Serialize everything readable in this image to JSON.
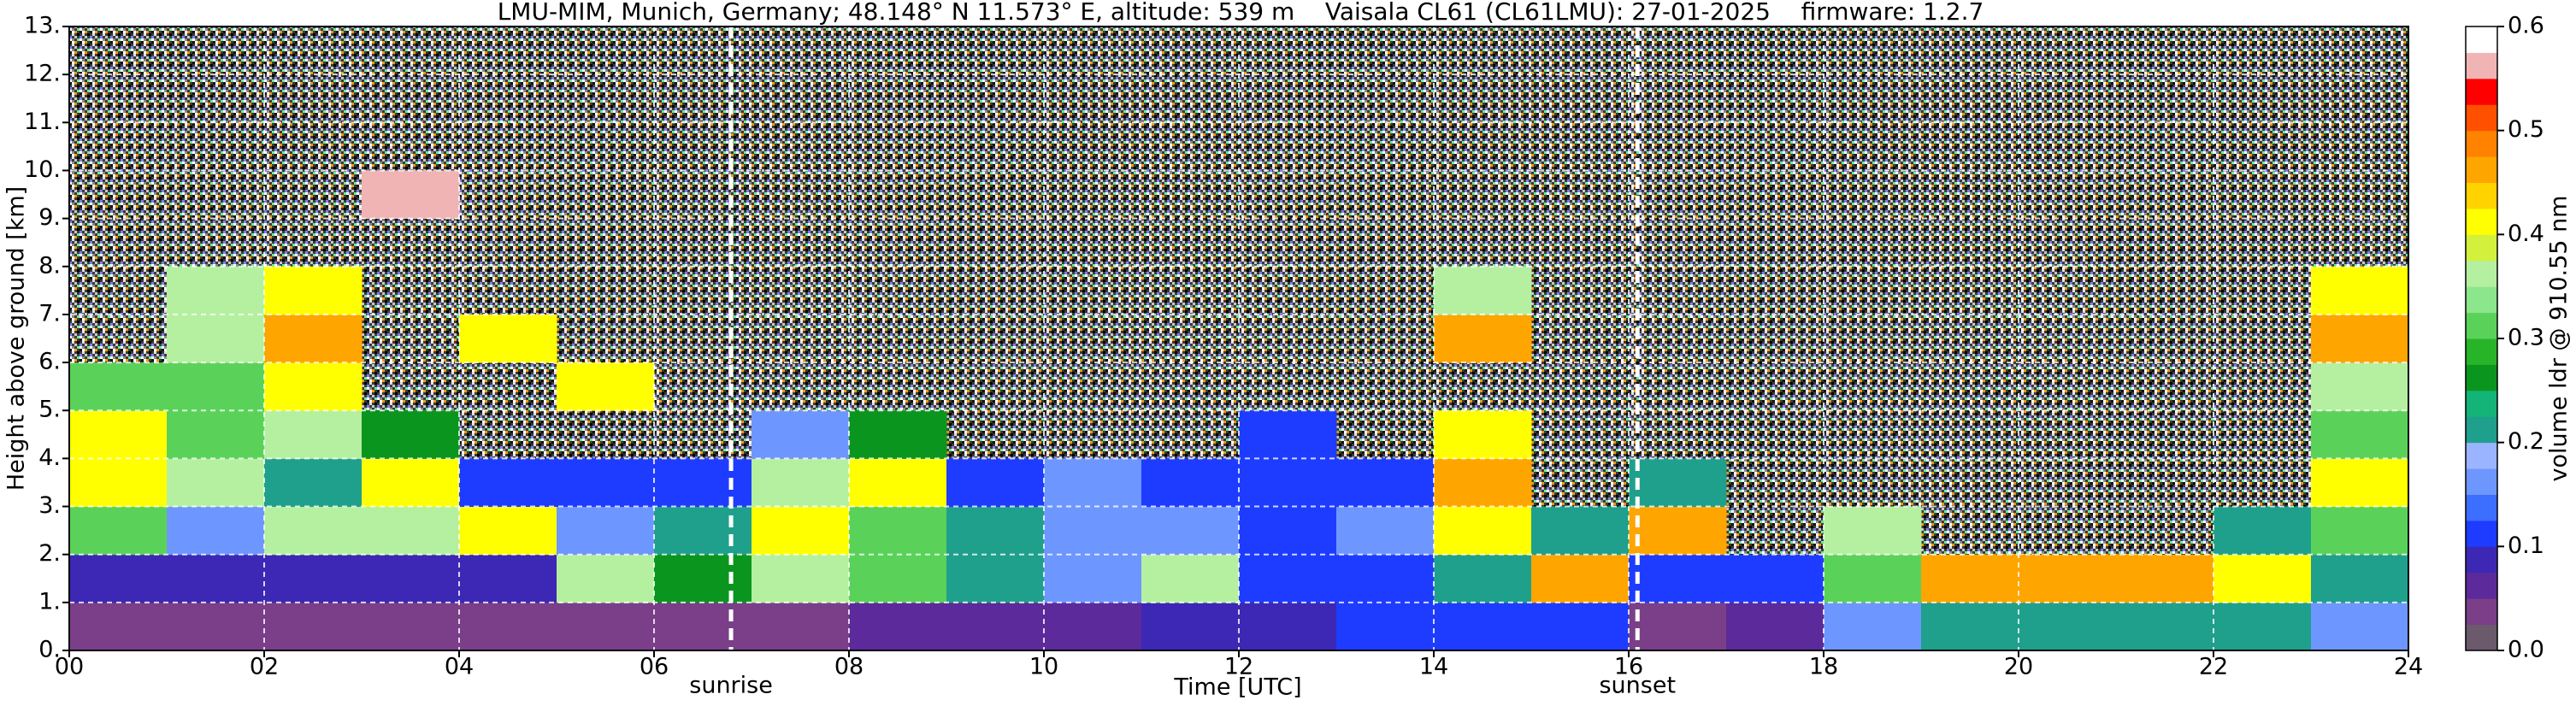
{
  "chart_data": {
    "type": "heatmap",
    "title": "LMU-MIM, Munich, Germany; 48.148° N 11.573° E, altitude: 539 m    Vaisala CL61 (CL61LMU): 27-01-2025    firmware: 1.2.7",
    "x_label": "Time [UTC]",
    "y_label": "Height above ground [km]",
    "colorbar_label": "volume ldr @ 910.55 nm",
    "x": [
      0.5,
      1.5,
      2.5,
      3.5,
      4.5,
      5.5,
      6.5,
      7.5,
      8.5,
      9.5,
      10.5,
      11.5,
      12.5,
      13.5,
      14.5,
      15.5,
      16.5,
      17.5,
      18.5,
      19.5,
      20.5,
      21.5,
      22.5,
      23.5
    ],
    "y": [
      0.5,
      1.5,
      2.5,
      3.5,
      4.5,
      5.5,
      6.5,
      7.5,
      8.5,
      9.5,
      10.5,
      11.5,
      12.5
    ],
    "z": [
      [
        0.03,
        0.03,
        0.03,
        0.03,
        0.03,
        0.03,
        0.04,
        0.04,
        0.05,
        0.06,
        0.06,
        0.08,
        0.08,
        0.1,
        0.1,
        0.12,
        0.04,
        0.05,
        0.15,
        0.2,
        0.22,
        0.22,
        0.2,
        0.15
      ],
      [
        0.08,
        0.08,
        0.08,
        0.08,
        0.08,
        0.35,
        0.25,
        0.35,
        0.3,
        0.2,
        0.15,
        0.35,
        0.1,
        0.1,
        0.2,
        0.45,
        0.1,
        0.1,
        0.3,
        0.45,
        0.45,
        0.45,
        0.4,
        0.2
      ],
      [
        0.3,
        0.15,
        0.35,
        0.35,
        0.4,
        0.15,
        0.2,
        0.4,
        0.3,
        0.2,
        0.15,
        0.15,
        0.1,
        0.15,
        0.4,
        0.2,
        0.45,
        null,
        0.35,
        null,
        null,
        null,
        0.2,
        0.3
      ],
      [
        0.4,
        0.35,
        0.2,
        0.4,
        0.1,
        0.1,
        0.1,
        0.35,
        0.4,
        0.1,
        0.15,
        0.1,
        0.1,
        0.1,
        0.45,
        null,
        0.2,
        null,
        null,
        null,
        null,
        null,
        null,
        0.4
      ],
      [
        0.4,
        0.3,
        0.35,
        0.25,
        null,
        null,
        null,
        0.15,
        0.25,
        null,
        null,
        null,
        0.1,
        null,
        0.4,
        null,
        null,
        null,
        null,
        null,
        null,
        null,
        null,
        0.3
      ],
      [
        0.3,
        0.3,
        0.4,
        null,
        null,
        0.4,
        null,
        null,
        null,
        null,
        null,
        null,
        null,
        null,
        null,
        null,
        null,
        null,
        null,
        null,
        null,
        null,
        null,
        0.35
      ],
      [
        null,
        0.35,
        0.45,
        null,
        0.4,
        null,
        null,
        null,
        null,
        null,
        null,
        null,
        null,
        null,
        0.45,
        null,
        null,
        null,
        null,
        null,
        null,
        null,
        null,
        0.45
      ],
      [
        null,
        0.35,
        0.4,
        null,
        null,
        null,
        null,
        null,
        null,
        null,
        null,
        null,
        null,
        null,
        0.35,
        null,
        null,
        null,
        null,
        null,
        null,
        null,
        null,
        0.4
      ],
      [
        null,
        null,
        null,
        null,
        null,
        null,
        null,
        null,
        null,
        null,
        null,
        null,
        null,
        null,
        null,
        null,
        null,
        null,
        null,
        null,
        null,
        null,
        null,
        null
      ],
      [
        null,
        null,
        null,
        0.55,
        null,
        null,
        null,
        null,
        null,
        null,
        null,
        null,
        null,
        null,
        null,
        null,
        null,
        null,
        null,
        null,
        null,
        null,
        null,
        null
      ],
      [
        null,
        null,
        null,
        null,
        null,
        null,
        null,
        null,
        null,
        null,
        null,
        null,
        null,
        null,
        null,
        null,
        null,
        null,
        null,
        null,
        null,
        null,
        null,
        null
      ],
      [
        null,
        null,
        null,
        null,
        null,
        null,
        null,
        null,
        null,
        null,
        null,
        null,
        null,
        null,
        null,
        null,
        null,
        null,
        null,
        null,
        null,
        null,
        null,
        null
      ],
      [
        null,
        null,
        null,
        null,
        null,
        null,
        null,
        null,
        null,
        null,
        null,
        null,
        null,
        null,
        null,
        null,
        null,
        null,
        null,
        null,
        null,
        null,
        null,
        null
      ]
    ],
    "colorscale": [
      "#6b5a6b",
      "#7a3f88",
      "#5c2a9a",
      "#3c28b4",
      "#1e3cff",
      "#3c6eff",
      "#6e96ff",
      "#9bb4ff",
      "#1fa08c",
      "#14b478",
      "#0a961e",
      "#28b428",
      "#5ad25a",
      "#8ce68c",
      "#b4f0a0",
      "#d2f03c",
      "#ffff00",
      "#ffd200",
      "#ffa500",
      "#ff8200",
      "#ff5000",
      "#ff0000",
      "#f0b4b4",
      "#ffffff"
    ],
    "zlim": [
      0,
      0.6
    ],
    "zticks": [
      {
        "value": 0,
        "label": "0.0"
      },
      0.1,
      0.2,
      0.3,
      0.4,
      0.5,
      0.6
    ],
    "xlim": [
      0,
      24
    ],
    "xticks": [
      {
        "value": 0,
        "label": "00"
      },
      {
        "value": 2,
        "label": "02"
      },
      {
        "value": 4,
        "label": "04"
      },
      {
        "value": 6,
        "label": "06"
      },
      {
        "value": 8,
        "label": "08"
      },
      {
        "value": 10,
        "label": "10"
      },
      {
        "value": 12,
        "label": "12"
      },
      {
        "value": 14,
        "label": "14"
      },
      {
        "value": 16,
        "label": "16"
      },
      {
        "value": 18,
        "label": "18"
      },
      {
        "value": 20,
        "label": "20"
      },
      {
        "value": 22,
        "label": "22"
      },
      {
        "value": 24,
        "label": "24"
      }
    ],
    "ylim": [
      0,
      13
    ],
    "yticks": [
      {
        "value": 0,
        "label": "0."
      },
      {
        "value": 1,
        "label": "1."
      },
      {
        "value": 2,
        "label": "2."
      },
      {
        "value": 3,
        "label": "3."
      },
      {
        "value": 4,
        "label": "4."
      },
      {
        "value": 5,
        "label": "5."
      },
      {
        "value": 6,
        "label": "6."
      },
      {
        "value": 7,
        "label": "7."
      },
      {
        "value": 8,
        "label": "8."
      },
      {
        "value": 9,
        "label": "9."
      },
      {
        "value": 10,
        "label": "10."
      },
      {
        "value": 11,
        "label": "11."
      },
      {
        "value": 12,
        "label": "12."
      },
      {
        "value": 13,
        "label": "13."
      }
    ],
    "grid": true,
    "annotations": [
      {
        "text": "sunrise",
        "x": 6.79
      },
      {
        "text": "sunset",
        "x": 16.09
      }
    ]
  }
}
